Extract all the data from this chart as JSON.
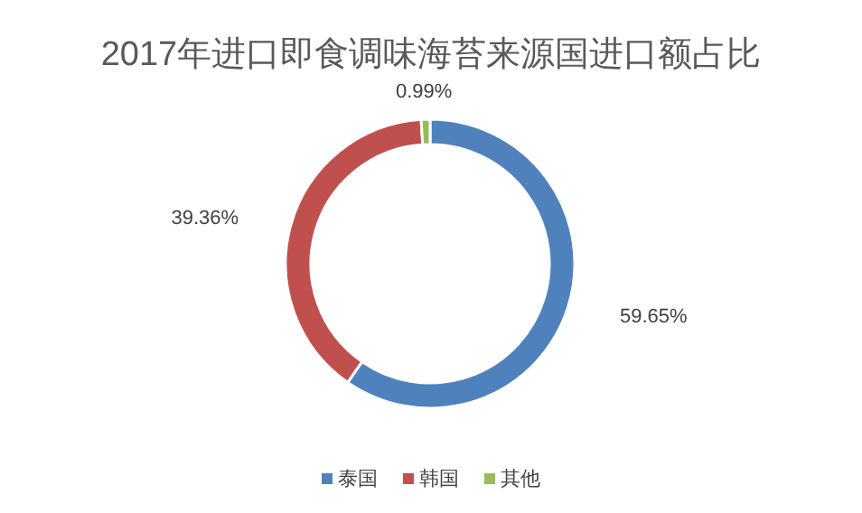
{
  "chart_data": {
    "type": "donut",
    "title": "2017年进口即食调味海苔来源国进口额占比",
    "categories": [
      "泰国",
      "韩国",
      "其他"
    ],
    "values": [
      59.65,
      39.36,
      0.99
    ],
    "colors": [
      "#4f81bd",
      "#c0504d",
      "#9bbb59"
    ],
    "value_labels": [
      "59.65%",
      "39.36%",
      "0.99%"
    ],
    "legend": "bottom"
  }
}
